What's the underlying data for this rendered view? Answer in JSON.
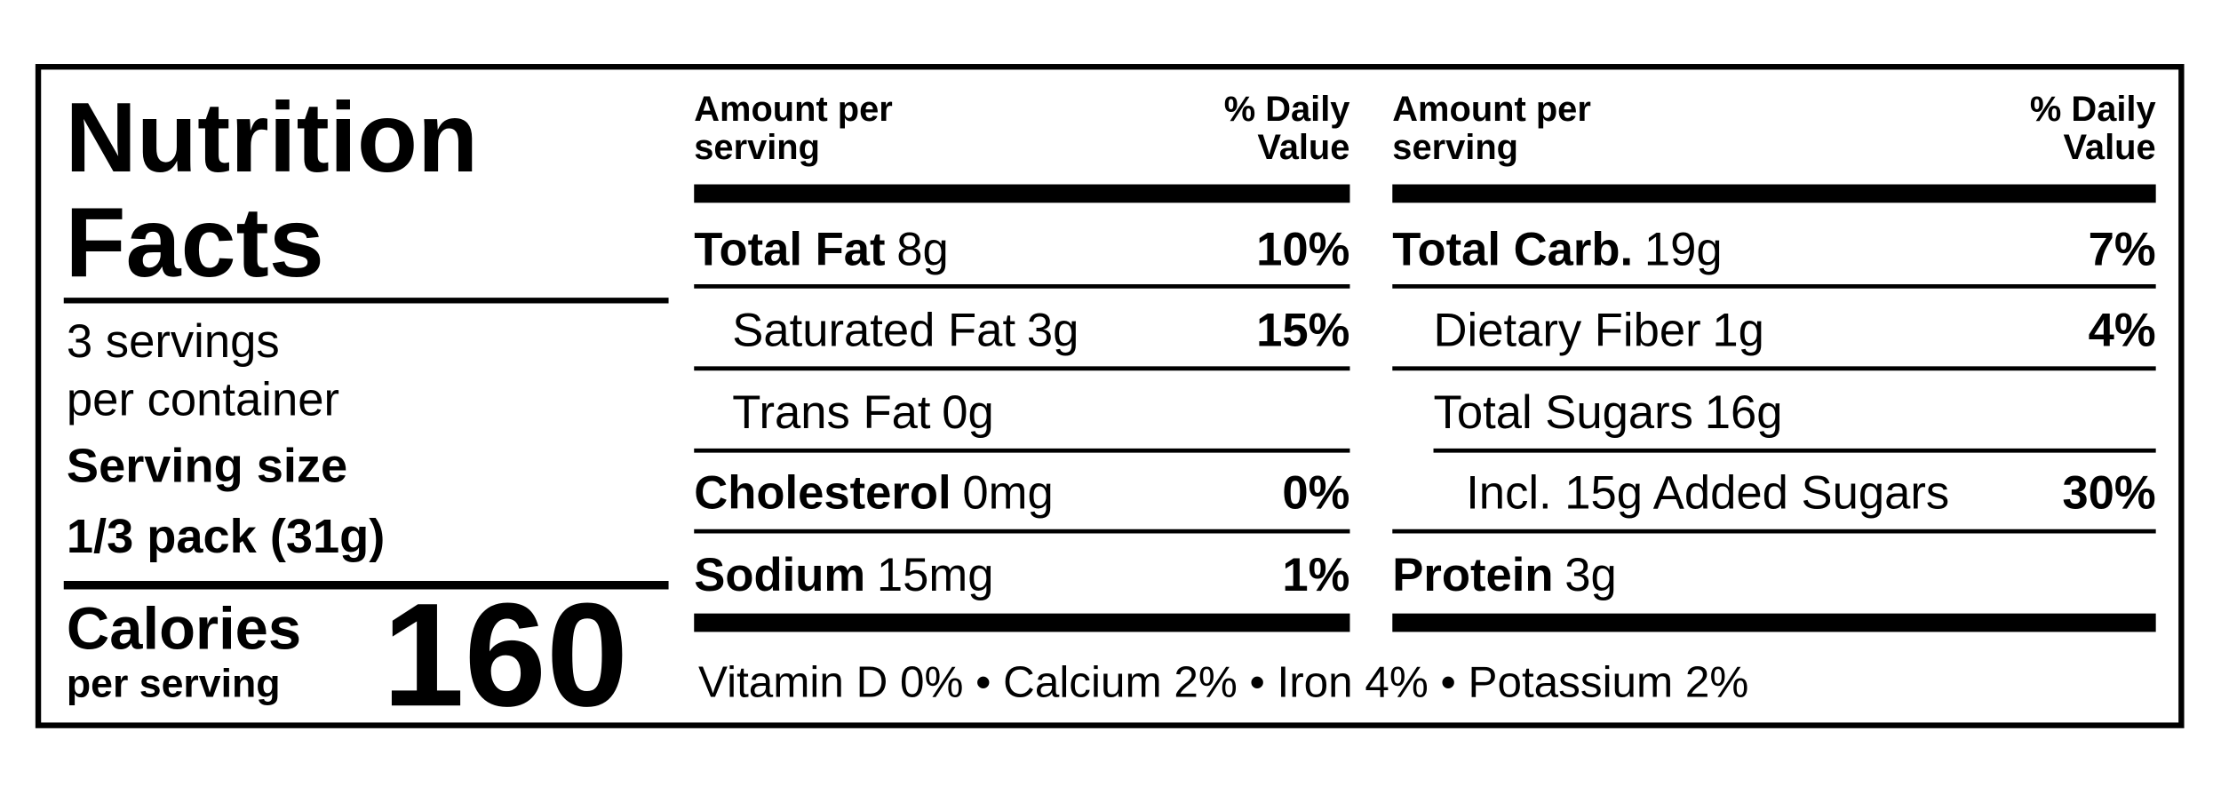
{
  "label": {
    "title_lines": [
      "Nutrition",
      "Facts"
    ],
    "servings_lines": [
      "3 servings",
      "per container"
    ],
    "serving_size": {
      "label": "Serving size",
      "value": "1/3 pack (31g)"
    },
    "calories": {
      "label": "Calories",
      "sublabel": "per serving",
      "value": "160"
    },
    "columns": [
      {
        "header": {
          "amount": [
            "Amount per",
            "serving"
          ],
          "dv": [
            "% Daily",
            "Value"
          ]
        },
        "rows": [
          {
            "name": "Total Fat",
            "amount": "8g",
            "dv": "10%"
          },
          {
            "name": "Saturated Fat",
            "amount": "3g",
            "dv": "15%"
          },
          {
            "name": "Trans Fat",
            "amount": "0g"
          },
          {
            "name": "Cholesterol",
            "amount": "0mg",
            "dv": "0%"
          },
          {
            "name": "Sodium",
            "amount": "15mg",
            "dv": "1%"
          }
        ]
      },
      {
        "header": {
          "amount": [
            "Amount per",
            "serving"
          ],
          "dv": [
            "% Daily",
            "Value"
          ]
        },
        "rows": [
          {
            "name": "Total Carb.",
            "amount": "19g",
            "dv": "7%"
          },
          {
            "name": "Dietary Fiber",
            "amount": "1g",
            "dv": "4%"
          },
          {
            "name": "Total Sugars",
            "amount": "16g"
          },
          {
            "name": "Incl. 15g Added Sugars",
            "dv": "30%"
          },
          {
            "name": "Protein",
            "amount": "3g"
          }
        ]
      }
    ],
    "footer": "Vitamin D 0% • Calcium 2% • Iron 4% • Potassium 2%"
  }
}
